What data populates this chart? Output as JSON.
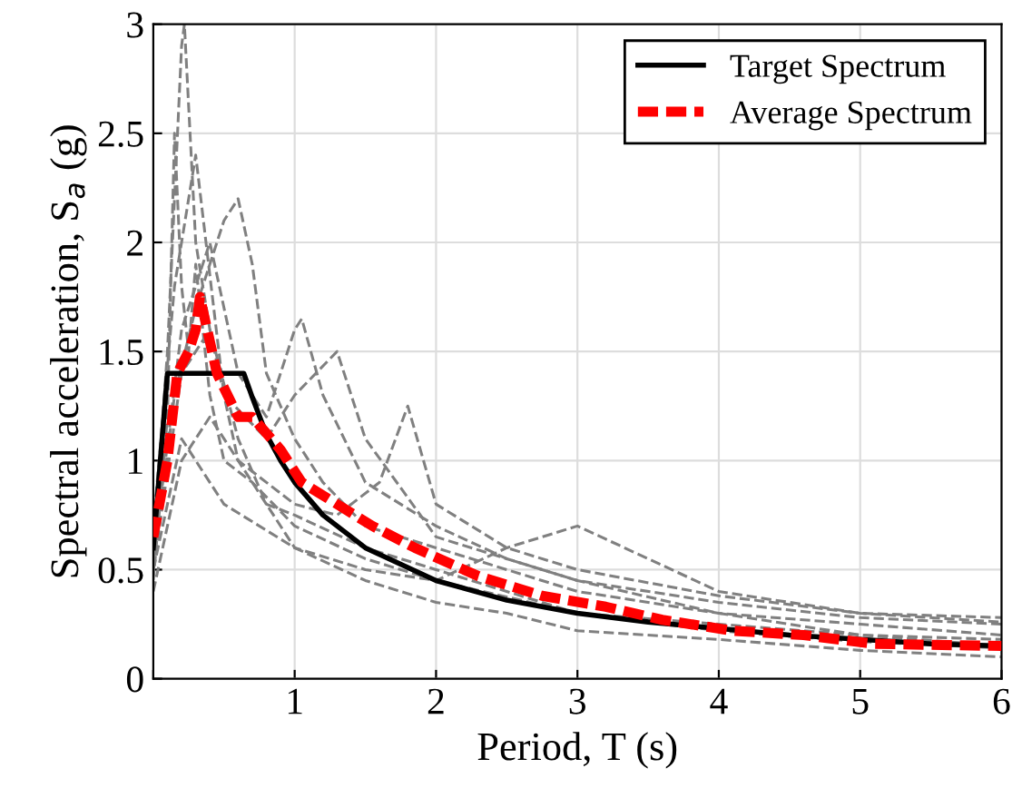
{
  "chart_data": {
    "type": "line",
    "xlabel": "Period, T (s)",
    "ylabel": "Spectral acceleration, S$_{a}$ (g)",
    "xlim": [
      0,
      6
    ],
    "ylim": [
      0,
      3
    ],
    "xticks": [
      {
        "value": 0,
        "label": null
      },
      1,
      2,
      3,
      4,
      5,
      6
    ],
    "yticks": [
      0,
      0.5,
      1,
      1.5,
      2,
      2.5,
      3
    ],
    "grid": true,
    "legend": "top right",
    "series": [
      {
        "color": "#808080",
        "line_style": "dashed",
        "x": [
          0,
          0.1,
          0.15,
          0.2,
          0.25,
          0.3,
          0.4,
          0.5,
          0.7,
          1,
          1.5,
          2,
          3,
          4,
          5,
          6
        ],
        "values": [
          0.45,
          1.2,
          2.5,
          1.8,
          1.5,
          1.9,
          1.3,
          1.0,
          0.9,
          0.7,
          0.55,
          0.45,
          0.3,
          0.22,
          0.17,
          0.14
        ]
      },
      {
        "color": "#808080",
        "line_style": "dashed",
        "x": [
          0,
          0.1,
          0.2,
          0.22,
          0.3,
          0.4,
          0.6,
          0.8,
          1,
          1.5,
          2,
          2.5,
          3,
          4,
          5,
          6
        ],
        "values": [
          0.6,
          1.5,
          2.9,
          3.0,
          2.0,
          1.6,
          1.1,
          0.8,
          0.75,
          0.6,
          0.5,
          0.4,
          0.3,
          0.25,
          0.2,
          0.15
        ]
      },
      {
        "color": "#808080",
        "line_style": "dashed",
        "x": [
          0,
          0.15,
          0.3,
          0.5,
          0.6,
          0.7,
          0.8,
          1,
          1.2,
          1.5,
          2,
          3,
          4,
          5,
          6
        ],
        "values": [
          0.5,
          1.3,
          1.7,
          2.1,
          2.2,
          1.9,
          1.4,
          1.1,
          0.9,
          0.7,
          0.6,
          0.4,
          0.3,
          0.25,
          0.2
        ]
      },
      {
        "color": "#808080",
        "line_style": "dashed",
        "x": [
          0,
          0.2,
          0.4,
          0.6,
          0.8,
          1.0,
          1.05,
          1.2,
          1.5,
          2,
          2.5,
          3,
          4,
          5,
          6
        ],
        "values": [
          0.55,
          1.6,
          2.0,
          1.4,
          1.2,
          1.6,
          1.65,
          1.3,
          0.9,
          0.7,
          0.55,
          0.45,
          0.35,
          0.28,
          0.25
        ]
      },
      {
        "color": "#808080",
        "line_style": "dashed",
        "x": [
          0,
          0.2,
          0.4,
          0.6,
          1,
          1.3,
          1.6,
          1.8,
          2,
          2.5,
          3,
          4,
          5,
          6
        ],
        "values": [
          0.5,
          1.4,
          1.6,
          1.0,
          0.8,
          0.75,
          0.9,
          1.25,
          0.8,
          0.6,
          0.5,
          0.38,
          0.3,
          0.26
        ]
      },
      {
        "color": "#808080",
        "line_style": "dashed",
        "x": [
          0,
          0.2,
          0.4,
          0.7,
          1,
          1.5,
          2,
          2.5,
          3,
          3.5,
          4,
          5,
          6
        ],
        "values": [
          0.4,
          1.0,
          1.2,
          0.9,
          0.6,
          0.5,
          0.45,
          0.6,
          0.7,
          0.55,
          0.4,
          0.3,
          0.28
        ]
      },
      {
        "color": "#808080",
        "line_style": "dashed",
        "x": [
          0,
          0.2,
          0.5,
          1,
          1.5,
          2,
          2.5,
          3,
          4,
          5,
          6
        ],
        "values": [
          0.5,
          1.1,
          0.8,
          0.6,
          0.45,
          0.35,
          0.3,
          0.22,
          0.18,
          0.13,
          0.1
        ]
      },
      {
        "color": "#808080",
        "line_style": "dashed",
        "x": [
          0,
          0.15,
          0.3,
          0.5,
          0.8,
          1,
          1.3,
          1.5,
          2,
          3,
          4,
          5,
          6
        ],
        "values": [
          0.7,
          1.8,
          2.4,
          1.3,
          1.1,
          1.3,
          1.5,
          1.1,
          0.65,
          0.45,
          0.3,
          0.2,
          0.18
        ]
      },
      {
        "name": "Target Spectrum",
        "color": "#000000",
        "line_style": "solid",
        "x": [
          0,
          0.1,
          0.64,
          0.7,
          0.8,
          0.9,
          1,
          1.2,
          1.5,
          2,
          2.5,
          3,
          3.5,
          4,
          4.5,
          5,
          5.5,
          6
        ],
        "values": [
          0.6,
          1.4,
          1.4,
          1.29,
          1.12,
          1.0,
          0.9,
          0.75,
          0.6,
          0.45,
          0.36,
          0.3,
          0.26,
          0.23,
          0.2,
          0.18,
          0.16,
          0.15
        ]
      },
      {
        "name": "Average Spectrum",
        "color": "#ff0000",
        "line_style": "dashed",
        "x": [
          0,
          0.1,
          0.17,
          0.25,
          0.3,
          0.33,
          0.45,
          0.6,
          0.7,
          0.9,
          1.05,
          1.3,
          1.55,
          1.85,
          2.3,
          2.75,
          3.2,
          3.6,
          4.1,
          4.6,
          5.1,
          6
        ],
        "values": [
          0.65,
          1.0,
          1.4,
          1.5,
          1.6,
          1.75,
          1.4,
          1.2,
          1.2,
          1.05,
          0.9,
          0.8,
          0.7,
          0.6,
          0.47,
          0.38,
          0.33,
          0.27,
          0.22,
          0.2,
          0.16,
          0.15
        ]
      }
    ]
  }
}
